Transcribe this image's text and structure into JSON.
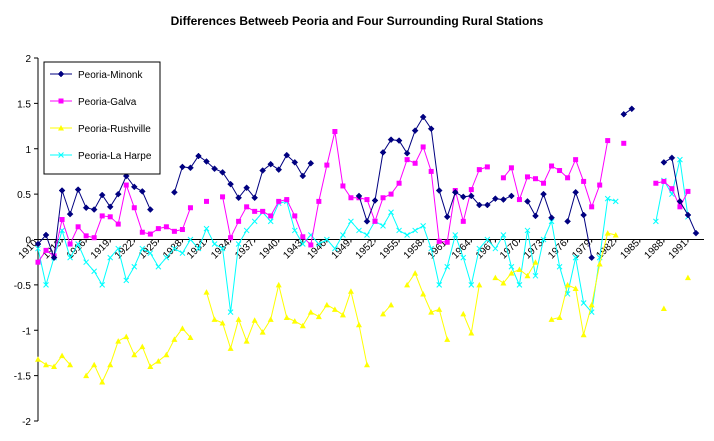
{
  "chart_data": {
    "type": "line",
    "title": "Differences Betweeb Peoria and Four Surrounding Rural Stations",
    "xlabel": "",
    "ylabel": "",
    "ylim": [
      -2,
      2
    ],
    "yticks": [
      -2,
      -1.5,
      -1,
      -0.5,
      0,
      0.5,
      1,
      1.5,
      2
    ],
    "xlim": [
      1910,
      1993
    ],
    "xticks": [
      1910,
      1913,
      1916,
      1919,
      1922,
      1925,
      1928,
      1931,
      1934,
      1937,
      1940,
      1943,
      1946,
      1949,
      1952,
      1955,
      1958,
      1961,
      1964,
      1967,
      1970,
      1973,
      1976,
      1979,
      1982,
      1985,
      1988,
      1991
    ],
    "grid": false,
    "legend_position": "top-left",
    "series": [
      {
        "name": "Peoria-Minonk",
        "color": "#000080",
        "marker": "diamond",
        "points": [
          [
            1910,
            -0.05
          ],
          [
            1911,
            0.05
          ],
          [
            1912,
            -0.2
          ],
          [
            1913,
            0.54
          ],
          [
            1914,
            0.28
          ],
          [
            1915,
            0.55
          ],
          [
            1916,
            0.35
          ],
          [
            1917,
            0.33
          ],
          [
            1918,
            0.49
          ],
          [
            1919,
            0.36
          ],
          [
            1920,
            0.5
          ],
          [
            1921,
            0.7
          ],
          [
            1922,
            0.58
          ],
          [
            1923,
            0.53
          ],
          [
            1924,
            0.33
          ],
          null,
          [
            1927,
            0.52
          ],
          [
            1928,
            0.8
          ],
          [
            1929,
            0.79
          ],
          [
            1930,
            0.92
          ],
          [
            1931,
            0.86
          ],
          [
            1932,
            0.78
          ],
          [
            1933,
            0.74
          ],
          [
            1934,
            0.61
          ],
          [
            1935,
            0.46
          ],
          [
            1936,
            0.57
          ],
          [
            1937,
            0.46
          ],
          [
            1938,
            0.76
          ],
          [
            1939,
            0.83
          ],
          [
            1940,
            0.77
          ],
          [
            1941,
            0.93
          ],
          [
            1942,
            0.85
          ],
          [
            1943,
            0.7
          ],
          [
            1944,
            0.84
          ],
          null,
          [
            1950,
            0.48
          ],
          [
            1951,
            0.2
          ],
          [
            1952,
            0.43
          ],
          [
            1953,
            0.96
          ],
          [
            1954,
            1.1
          ],
          [
            1955,
            1.09
          ],
          [
            1956,
            0.95
          ],
          [
            1957,
            1.2
          ],
          [
            1958,
            1.35
          ],
          [
            1959,
            1.22
          ],
          [
            1960,
            0.54
          ],
          [
            1961,
            0.25
          ],
          [
            1962,
            0.52
          ],
          [
            1963,
            0.47
          ],
          [
            1964,
            0.48
          ],
          [
            1965,
            0.38
          ],
          [
            1966,
            0.38
          ],
          [
            1967,
            0.45
          ],
          [
            1968,
            0.44
          ],
          [
            1969,
            0.48
          ],
          null,
          [
            1971,
            0.42
          ],
          [
            1972,
            0.26
          ],
          [
            1973,
            0.5
          ],
          [
            1974,
            0.24
          ],
          null,
          [
            1976,
            0.2
          ],
          [
            1977,
            0.52
          ],
          [
            1978,
            0.27
          ],
          [
            1979,
            -0.2
          ],
          null,
          [
            1983,
            1.38
          ],
          [
            1984,
            1.44
          ],
          null,
          [
            1988,
            0.85
          ],
          [
            1989,
            0.9
          ],
          [
            1990,
            0.42
          ],
          [
            1991,
            0.27
          ],
          [
            1992,
            0.07
          ]
        ]
      },
      {
        "name": "Peoria-Galva",
        "color": "#ff00ff",
        "marker": "square",
        "points": [
          [
            1910,
            -0.25
          ],
          [
            1911,
            -0.12
          ],
          [
            1912,
            -0.18
          ],
          [
            1913,
            0.22
          ],
          [
            1914,
            -0.05
          ],
          [
            1915,
            0.14
          ],
          [
            1916,
            0.04
          ],
          [
            1917,
            0.02
          ],
          [
            1918,
            0.26
          ],
          [
            1919,
            0.25
          ],
          [
            1920,
            0.17
          ],
          [
            1921,
            0.6
          ],
          [
            1922,
            0.35
          ],
          [
            1923,
            0.08
          ],
          [
            1924,
            0.06
          ],
          [
            1925,
            0.12
          ],
          [
            1926,
            0.14
          ],
          [
            1927,
            0.09
          ],
          [
            1928,
            0.11
          ],
          [
            1929,
            0.35
          ],
          null,
          [
            1931,
            0.42
          ],
          null,
          [
            1933,
            0.47
          ],
          [
            1934,
            0.02
          ],
          [
            1935,
            0.2
          ],
          [
            1936,
            0.36
          ],
          [
            1937,
            0.31
          ],
          [
            1938,
            0.31
          ],
          [
            1939,
            0.26
          ],
          [
            1940,
            0.42
          ],
          [
            1941,
            0.44
          ],
          [
            1942,
            0.26
          ],
          [
            1943,
            0.03
          ],
          [
            1944,
            -0.06
          ],
          [
            1945,
            0.42
          ],
          [
            1946,
            0.82
          ],
          [
            1947,
            1.19
          ],
          [
            1948,
            0.59
          ],
          [
            1949,
            0.46
          ],
          [
            1950,
            0.46
          ],
          [
            1951,
            0.44
          ],
          [
            1952,
            0.2
          ],
          [
            1953,
            0.46
          ],
          [
            1954,
            0.5
          ],
          [
            1955,
            0.62
          ],
          [
            1956,
            0.88
          ],
          [
            1957,
            0.84
          ],
          [
            1958,
            1.02
          ],
          [
            1959,
            0.75
          ],
          [
            1960,
            -0.02
          ],
          [
            1961,
            -0.03
          ],
          [
            1962,
            0.54
          ],
          [
            1963,
            0.2
          ],
          [
            1964,
            0.55
          ],
          [
            1965,
            0.77
          ],
          [
            1966,
            0.8
          ],
          null,
          [
            1968,
            0.68
          ],
          [
            1969,
            0.79
          ],
          [
            1970,
            0.44
          ],
          [
            1971,
            0.69
          ],
          [
            1972,
            0.67
          ],
          [
            1973,
            0.62
          ],
          [
            1974,
            0.81
          ],
          [
            1975,
            0.76
          ],
          [
            1976,
            0.68
          ],
          [
            1977,
            0.88
          ],
          [
            1978,
            0.64
          ],
          [
            1979,
            0.36
          ],
          [
            1980,
            0.6
          ],
          [
            1981,
            1.09
          ],
          null,
          [
            1983,
            1.06
          ],
          null,
          [
            1987,
            0.62
          ],
          [
            1988,
            0.64
          ],
          [
            1989,
            0.56
          ],
          [
            1990,
            0.36
          ],
          [
            1991,
            0.53
          ]
        ]
      },
      {
        "name": "Peoria-Rushville",
        "color": "#ffff00",
        "marker": "triangle",
        "points": [
          [
            1910,
            -1.32
          ],
          [
            1911,
            -1.38
          ],
          [
            1912,
            -1.4
          ],
          [
            1913,
            -1.28
          ],
          [
            1914,
            -1.38
          ],
          null,
          [
            1916,
            -1.5
          ],
          [
            1917,
            -1.38
          ],
          [
            1918,
            -1.57
          ],
          [
            1919,
            -1.38
          ],
          [
            1920,
            -1.12
          ],
          [
            1921,
            -1.07
          ],
          [
            1922,
            -1.27
          ],
          [
            1923,
            -1.18
          ],
          [
            1924,
            -1.4
          ],
          [
            1925,
            -1.34
          ],
          [
            1926,
            -1.27
          ],
          [
            1927,
            -1.1
          ],
          [
            1928,
            -0.98
          ],
          [
            1929,
            -1.08
          ],
          null,
          [
            1931,
            -0.58
          ],
          [
            1932,
            -0.88
          ],
          [
            1933,
            -0.92
          ],
          [
            1934,
            -1.2
          ],
          [
            1935,
            -0.88
          ],
          [
            1936,
            -1.12
          ],
          [
            1937,
            -0.89
          ],
          [
            1938,
            -1.02
          ],
          [
            1939,
            -0.88
          ],
          [
            1940,
            -0.5
          ],
          [
            1941,
            -0.86
          ],
          [
            1942,
            -0.9
          ],
          [
            1943,
            -0.95
          ],
          [
            1944,
            -0.8
          ],
          [
            1945,
            -0.85
          ],
          [
            1946,
            -0.72
          ],
          [
            1947,
            -0.77
          ],
          [
            1948,
            -0.83
          ],
          [
            1949,
            -0.57
          ],
          [
            1950,
            -0.94
          ],
          [
            1951,
            -1.38
          ],
          null,
          [
            1953,
            -0.82
          ],
          [
            1954,
            -0.72
          ],
          null,
          [
            1956,
            -0.5
          ],
          [
            1957,
            -0.37
          ],
          [
            1958,
            -0.6
          ],
          [
            1959,
            -0.8
          ],
          [
            1960,
            -0.77
          ],
          [
            1961,
            -1.1
          ],
          null,
          [
            1963,
            -0.82
          ],
          [
            1964,
            -1.03
          ],
          [
            1965,
            -0.5
          ],
          null,
          [
            1967,
            -0.42
          ],
          [
            1968,
            -0.48
          ],
          [
            1969,
            -0.37
          ],
          [
            1970,
            -0.33
          ],
          [
            1971,
            -0.4
          ],
          [
            1972,
            -0.25
          ],
          null,
          [
            1974,
            -0.88
          ],
          [
            1975,
            -0.86
          ],
          [
            1976,
            -0.5
          ],
          [
            1977,
            -0.54
          ],
          [
            1978,
            -1.05
          ],
          [
            1979,
            -0.72
          ],
          [
            1980,
            -0.27
          ],
          [
            1981,
            0.07
          ],
          [
            1982,
            0.05
          ],
          null,
          [
            1988,
            -0.76
          ],
          null,
          [
            1991,
            -0.42
          ]
        ]
      },
      {
        "name": "Peoria-La Harpe",
        "color": "#00ffff",
        "marker": "x",
        "points": [
          [
            1910,
            -0.1
          ],
          [
            1911,
            -0.5
          ],
          [
            1912,
            -0.2
          ],
          [
            1913,
            0.1
          ],
          [
            1914,
            -0.2
          ],
          [
            1915,
            -0.05
          ],
          [
            1916,
            -0.25
          ],
          [
            1917,
            -0.35
          ],
          [
            1918,
            -0.5
          ],
          [
            1919,
            -0.2
          ],
          [
            1920,
            -0.1
          ],
          [
            1921,
            -0.45
          ],
          [
            1922,
            -0.3
          ],
          [
            1923,
            -0.1
          ],
          [
            1924,
            -0.15
          ],
          [
            1925,
            -0.3
          ],
          [
            1926,
            -0.2
          ],
          [
            1927,
            -0.1
          ],
          [
            1928,
            -0.15
          ],
          [
            1929,
            0.0
          ],
          [
            1930,
            -0.1
          ],
          [
            1931,
            0.12
          ],
          [
            1932,
            -0.05
          ],
          [
            1933,
            -0.1
          ],
          [
            1934,
            -0.8
          ],
          [
            1935,
            -0.05
          ],
          [
            1936,
            0.1
          ],
          [
            1937,
            0.2
          ],
          [
            1938,
            0.3
          ],
          [
            1939,
            0.2
          ],
          [
            1940,
            0.4
          ],
          [
            1941,
            0.42
          ],
          [
            1942,
            0.1
          ],
          [
            1943,
            -0.05
          ],
          [
            1944,
            0.05
          ],
          [
            1945,
            -0.05
          ],
          [
            1946,
            0.0
          ],
          [
            1947,
            -0.1
          ],
          [
            1948,
            0.05
          ],
          [
            1949,
            0.2
          ],
          [
            1950,
            0.1
          ],
          [
            1951,
            0.05
          ],
          [
            1952,
            0.2
          ],
          [
            1953,
            0.15
          ],
          [
            1954,
            0.3
          ],
          [
            1955,
            0.1
          ],
          [
            1956,
            0.05
          ],
          [
            1957,
            0.1
          ],
          [
            1958,
            0.15
          ],
          [
            1959,
            -0.1
          ],
          [
            1960,
            -0.5
          ],
          [
            1961,
            -0.3
          ],
          [
            1962,
            0.05
          ],
          [
            1963,
            -0.2
          ],
          [
            1964,
            -0.5
          ],
          [
            1965,
            -0.1
          ],
          [
            1966,
            0.0
          ],
          [
            1967,
            -0.1
          ],
          [
            1968,
            0.05
          ],
          [
            1969,
            -0.3
          ],
          [
            1970,
            -0.5
          ],
          [
            1971,
            0.1
          ],
          [
            1972,
            -0.4
          ],
          [
            1973,
            0.0
          ],
          [
            1974,
            0.2
          ],
          [
            1975,
            -0.3
          ],
          [
            1976,
            -0.6
          ],
          [
            1977,
            -0.2
          ],
          [
            1978,
            -0.7
          ],
          [
            1979,
            -0.8
          ],
          [
            1980,
            -0.2
          ],
          [
            1981,
            0.45
          ],
          [
            1982,
            0.42
          ],
          null,
          [
            1987,
            0.2
          ],
          [
            1988,
            0.65
          ],
          [
            1989,
            0.5
          ],
          [
            1990,
            0.88
          ],
          [
            1991,
            0.25
          ]
        ]
      }
    ]
  }
}
